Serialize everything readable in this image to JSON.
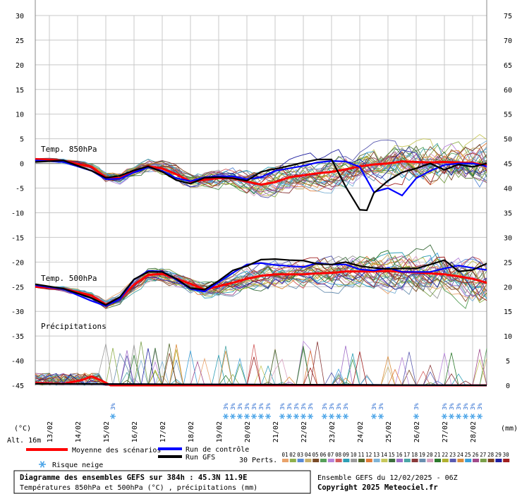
{
  "chart_data": {
    "type": "line",
    "left_axis": {
      "unit": "(°C)",
      "ticks": [
        30,
        25,
        20,
        15,
        10,
        5,
        0,
        -5,
        -10,
        -15,
        -20,
        -25,
        -30,
        -35,
        -40,
        -45
      ],
      "ylim": [
        -45,
        30
      ]
    },
    "right_axis": {
      "unit": "(mm)",
      "ticks": [
        75,
        70,
        65,
        60,
        55,
        50,
        45,
        40,
        35,
        30,
        25,
        20,
        15,
        10,
        5,
        0
      ],
      "ylim": [
        0,
        75
      ]
    },
    "x_dates": [
      "13/02",
      "14/02",
      "15/02",
      "16/02",
      "17/02",
      "18/02",
      "19/02",
      "20/02",
      "21/02",
      "22/02",
      "23/02",
      "24/02",
      "25/02",
      "26/02",
      "27/02",
      "28/02"
    ],
    "x_hours": [
      0,
      384
    ],
    "grid": true,
    "panel_labels": {
      "t850": "Temp. 850hPa",
      "t500": "Temp. 500hPa",
      "precip": "Précipitations"
    },
    "series": [
      {
        "name": "Moyenne des scénarios",
        "color": "#ff0000",
        "t850": [
          [
            0,
            0.9
          ],
          [
            24,
            0.5
          ],
          [
            48,
            -0.7
          ],
          [
            60,
            -2.8
          ],
          [
            72,
            -3.0
          ],
          [
            84,
            -1.5
          ],
          [
            96,
            -0.6
          ],
          [
            108,
            -1.0
          ],
          [
            120,
            -2.2
          ],
          [
            132,
            -3.7
          ],
          [
            144,
            -3.3
          ],
          [
            156,
            -3.0
          ],
          [
            168,
            -3.0
          ],
          [
            180,
            -3.7
          ],
          [
            192,
            -4.3
          ],
          [
            204,
            -3.8
          ],
          [
            216,
            -2.8
          ],
          [
            228,
            -2.4
          ],
          [
            240,
            -2.0
          ],
          [
            252,
            -1.7
          ],
          [
            264,
            -1.2
          ],
          [
            276,
            -0.6
          ],
          [
            288,
            -0.2
          ],
          [
            300,
            0.0
          ],
          [
            312,
            0.4
          ],
          [
            324,
            0.3
          ],
          [
            336,
            0.2
          ],
          [
            348,
            0.3
          ],
          [
            360,
            0.2
          ],
          [
            372,
            0.1
          ],
          [
            384,
            -0.4
          ]
        ],
        "t500": [
          [
            0,
            -25.0
          ],
          [
            24,
            -25.4
          ],
          [
            48,
            -26.8
          ],
          [
            60,
            -28.6
          ],
          [
            72,
            -27.4
          ],
          [
            84,
            -24.6
          ],
          [
            96,
            -22.6
          ],
          [
            108,
            -22.4
          ],
          [
            120,
            -23.4
          ],
          [
            132,
            -24.4
          ],
          [
            144,
            -25.6
          ],
          [
            156,
            -24.9
          ],
          [
            168,
            -24.2
          ],
          [
            180,
            -23.4
          ],
          [
            192,
            -22.8
          ],
          [
            204,
            -22.5
          ],
          [
            216,
            -22.5
          ],
          [
            228,
            -22.5
          ],
          [
            240,
            -22.3
          ],
          [
            252,
            -22.2
          ],
          [
            264,
            -21.9
          ],
          [
            276,
            -21.9
          ],
          [
            288,
            -21.9
          ],
          [
            300,
            -21.8
          ],
          [
            312,
            -22.0
          ],
          [
            324,
            -22.1
          ],
          [
            336,
            -22.3
          ],
          [
            348,
            -22.5
          ],
          [
            360,
            -22.9
          ],
          [
            372,
            -23.4
          ],
          [
            384,
            -24.2
          ]
        ],
        "precip": [
          [
            0,
            0.5
          ],
          [
            24,
            0.3
          ],
          [
            40,
            1.1
          ],
          [
            48,
            1.8
          ],
          [
            56,
            1.0
          ],
          [
            64,
            0.0
          ],
          [
            384,
            0.0
          ]
        ]
      },
      {
        "name": "Run de contrôle",
        "color": "#0000ff",
        "t850": [
          [
            0,
            0.6
          ],
          [
            24,
            0.3
          ],
          [
            48,
            -1.5
          ],
          [
            60,
            -3.2
          ],
          [
            72,
            -3.1
          ],
          [
            84,
            -1.8
          ],
          [
            96,
            -0.8
          ],
          [
            108,
            -1.5
          ],
          [
            120,
            -3.0
          ],
          [
            132,
            -3.6
          ],
          [
            144,
            -2.8
          ],
          [
            156,
            -2.6
          ],
          [
            168,
            -2.6
          ],
          [
            180,
            -3.2
          ],
          [
            192,
            -2.8
          ],
          [
            204,
            -1.5
          ],
          [
            216,
            -1.0
          ],
          [
            228,
            -0.5
          ],
          [
            240,
            0.2
          ],
          [
            252,
            0.5
          ],
          [
            264,
            0.4
          ],
          [
            276,
            -0.7
          ],
          [
            288,
            -5.8
          ],
          [
            300,
            -5.0
          ],
          [
            312,
            -6.5
          ],
          [
            324,
            -3.0
          ],
          [
            336,
            -1.5
          ],
          [
            348,
            -0.3
          ],
          [
            360,
            0.0
          ],
          [
            372,
            0.0
          ],
          [
            384,
            -0.6
          ]
        ],
        "t500": [
          [
            0,
            -24.7
          ],
          [
            24,
            -25.5
          ],
          [
            48,
            -27.9
          ],
          [
            60,
            -28.9
          ],
          [
            72,
            -27.5
          ],
          [
            84,
            -23.6
          ],
          [
            96,
            -21.8
          ],
          [
            108,
            -21.9
          ],
          [
            120,
            -23.6
          ],
          [
            132,
            -25.4
          ],
          [
            144,
            -26.0
          ],
          [
            156,
            -24.1
          ],
          [
            168,
            -22.2
          ],
          [
            180,
            -20.5
          ],
          [
            192,
            -20.2
          ],
          [
            204,
            -20.6
          ],
          [
            216,
            -20.8
          ],
          [
            228,
            -21.0
          ],
          [
            240,
            -20.2
          ],
          [
            252,
            -20.5
          ],
          [
            264,
            -20.5
          ],
          [
            276,
            -21.5
          ],
          [
            288,
            -21.7
          ],
          [
            300,
            -21.2
          ],
          [
            312,
            -22.0
          ],
          [
            324,
            -22.0
          ],
          [
            336,
            -22.0
          ],
          [
            348,
            -21.3
          ],
          [
            360,
            -20.7
          ],
          [
            372,
            -21.2
          ],
          [
            384,
            -21.6
          ]
        ],
        "precip": [
          [
            0,
            0.3
          ],
          [
            384,
            0.0
          ]
        ]
      },
      {
        "name": "Run GFS",
        "color": "#000000",
        "t850": [
          [
            0,
            0.3
          ],
          [
            24,
            0.6
          ],
          [
            48,
            -1.5
          ],
          [
            60,
            -2.9
          ],
          [
            72,
            -2.5
          ],
          [
            84,
            -1.4
          ],
          [
            96,
            -0.6
          ],
          [
            108,
            -1.7
          ],
          [
            120,
            -3.4
          ],
          [
            132,
            -4.1
          ],
          [
            144,
            -2.9
          ],
          [
            156,
            -2.8
          ],
          [
            168,
            -3.0
          ],
          [
            180,
            -3.5
          ],
          [
            192,
            -1.7
          ],
          [
            204,
            -1.1
          ],
          [
            216,
            -0.5
          ],
          [
            228,
            0.2
          ],
          [
            240,
            0.8
          ],
          [
            252,
            0.8
          ],
          [
            264,
            -4.7
          ],
          [
            276,
            -9.4
          ],
          [
            282,
            -9.5
          ],
          [
            288,
            -6.0
          ],
          [
            300,
            -3.5
          ],
          [
            312,
            -1.8
          ],
          [
            324,
            -1.0
          ],
          [
            336,
            0.0
          ],
          [
            348,
            -1.3
          ],
          [
            360,
            -0.2
          ],
          [
            372,
            -0.7
          ],
          [
            384,
            0.0
          ]
        ],
        "t500": [
          [
            0,
            -24.5
          ],
          [
            24,
            -25.4
          ],
          [
            48,
            -27.3
          ],
          [
            60,
            -28.7
          ],
          [
            72,
            -27.1
          ],
          [
            84,
            -23.5
          ],
          [
            96,
            -22.0
          ],
          [
            108,
            -22.0
          ],
          [
            120,
            -23.4
          ],
          [
            132,
            -25.3
          ],
          [
            144,
            -25.6
          ],
          [
            156,
            -23.8
          ],
          [
            168,
            -21.7
          ],
          [
            180,
            -20.8
          ],
          [
            192,
            -19.5
          ],
          [
            204,
            -19.4
          ],
          [
            216,
            -19.6
          ],
          [
            228,
            -19.7
          ],
          [
            240,
            -20.4
          ],
          [
            252,
            -20.5
          ],
          [
            264,
            -20.0
          ],
          [
            276,
            -20.8
          ],
          [
            288,
            -21.2
          ],
          [
            300,
            -21.4
          ],
          [
            312,
            -21.3
          ],
          [
            324,
            -21.3
          ],
          [
            336,
            -20.5
          ],
          [
            348,
            -19.6
          ],
          [
            360,
            -21.9
          ],
          [
            372,
            -21.6
          ],
          [
            384,
            -20.3
          ]
        ],
        "precip": [
          [
            0,
            0.3
          ],
          [
            384,
            0.0
          ]
        ]
      }
    ],
    "snow_risk_hours": [
      66,
      162,
      168,
      174,
      180,
      186,
      192,
      198,
      210,
      216,
      222,
      228,
      234,
      246,
      252,
      258,
      264,
      288,
      294,
      324,
      348,
      354,
      360,
      366,
      372,
      378
    ],
    "snow_marker_label": "3%",
    "footer": {
      "altitude": "Alt. 16m",
      "legend_mean": "Moyenne des scénarios",
      "legend_control": "Run de contrôle",
      "legend_gfs": "Run GFS",
      "legend_snow": "Risque neige",
      "perts_label": "30 Perts.",
      "pert_numbers": [
        "01",
        "02",
        "03",
        "04",
        "05",
        "06",
        "07",
        "08",
        "09",
        "10",
        "11",
        "12",
        "13",
        "14",
        "15",
        "16",
        "17",
        "18",
        "19",
        "20",
        "21",
        "22",
        "23",
        "24",
        "25",
        "26",
        "27",
        "28",
        "29",
        "30"
      ],
      "pert_colors": [
        "#e9a36b",
        "#8fb04d",
        "#5a8bd6",
        "#c8b06a",
        "#7a4b27",
        "#57a05a",
        "#b784d9",
        "#d15b5b",
        "#2e9fb5",
        "#9a9a9a",
        "#556b2f",
        "#e07b39",
        "#7fb3d5",
        "#c7c75a",
        "#3d6e3d",
        "#a06dc8",
        "#4aa6a6",
        "#8a3a3a",
        "#6a8fb0",
        "#d9a0c0",
        "#2d7a2d",
        "#b0b030",
        "#5b5bb0",
        "#d98c3a",
        "#3aa0d9",
        "#a04a8a",
        "#7aa04a",
        "#804020",
        "#2020a0",
        "#a02020"
      ],
      "title_line1": "Diagramme des ensembles GEFS sur 384h : 45.3N 11.9E",
      "title_line2": "Températures 850hPa et 500hPa (°C) , précipitations (mm)",
      "run_info": "Ensemble GEFS du 12/02/2025 - 06Z",
      "copyright": "Copyright 2025 Meteociel.fr"
    }
  }
}
